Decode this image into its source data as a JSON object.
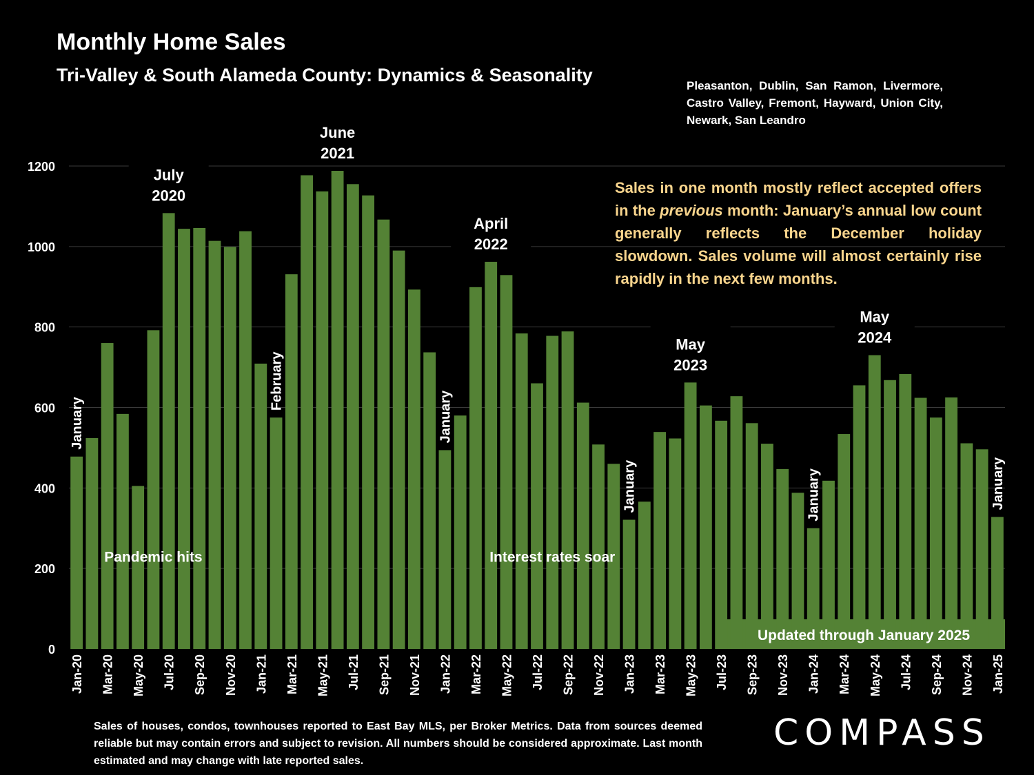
{
  "title": "Monthly Home Sales",
  "subtitle": "Tri-Valley & South Alameda County: Dynamics & Seasonality",
  "cities": "Pleasanton, Dublin, San Ramon, Livermore, Castro Valley, Fremont, Hayward, Union City, Newark, San Leandro",
  "note": {
    "before": "Sales in one month mostly reflect accepted offers in the ",
    "emphasis": "previous",
    "after": " month:  January’s annual low count generally reflects the December holiday slowdown. Sales volume will almost certainly rise rapidly in the next few months."
  },
  "footnote": "Sales of houses, condos, townhouses reported to East Bay MLS, per Broker Metrics. Data from sources deemed reliable but may contain errors and subject to revision. All numbers should be considered approximate.  Last month estimated and may change with late reported sales.",
  "logo": "COMPASS",
  "colors": {
    "bar": "#548235",
    "note": "#f9d58d",
    "background": "#000000"
  },
  "chart_data": {
    "type": "bar",
    "categories": [
      "Jan-20",
      "Feb-20",
      "Mar-20",
      "Apr-20",
      "May-20",
      "Jun-20",
      "Jul-20",
      "Aug-20",
      "Sep-20",
      "Oct-20",
      "Nov-20",
      "Dec-20",
      "Jan-21",
      "Feb-21",
      "Mar-21",
      "Apr-21",
      "May-21",
      "Jun-21",
      "Jul-21",
      "Aug-21",
      "Sep-21",
      "Oct-21",
      "Nov-21",
      "Dec-21",
      "Jan-22",
      "Feb-22",
      "Mar-22",
      "Apr-22",
      "May-22",
      "Jun-22",
      "Jul-22",
      "Aug-22",
      "Sep-22",
      "Oct-22",
      "Nov-22",
      "Dec-22",
      "Jan-23",
      "Feb-23",
      "Mar-23",
      "Apr-23",
      "May-23",
      "Jun-23",
      "Jul-23",
      "Aug-23",
      "Sep-23",
      "Oct-23",
      "Nov-23",
      "Dec-23",
      "Jan-24",
      "Feb-24",
      "Mar-24",
      "Apr-24",
      "May-24",
      "Jun-24",
      "Jul-24",
      "Aug-24",
      "Sep-24",
      "Oct-24",
      "Nov-24",
      "Dec-24",
      "Jan-25"
    ],
    "tick_labels": [
      "Jan-20",
      "Mar-20",
      "May-20",
      "Jul-20",
      "Sep-20",
      "Nov-20",
      "Jan-21",
      "Mar-21",
      "May-21",
      "Jul-21",
      "Sep-21",
      "Nov-21",
      "Jan-22",
      "Mar-22",
      "May-22",
      "Jul-22",
      "Sep-22",
      "Nov-22",
      "Jan-23",
      "Mar-23",
      "May-23",
      "Jul-23",
      "Sep-23",
      "Nov-23",
      "Jan-24",
      "Mar-24",
      "May-24",
      "Jul-24",
      "Sep-24",
      "Nov-24",
      "Jan-25"
    ],
    "values": [
      478,
      524,
      760,
      584,
      405,
      792,
      1083,
      1044,
      1046,
      1014,
      999,
      1038,
      709,
      575,
      931,
      1177,
      1137,
      1188,
      1155,
      1127,
      1067,
      990,
      893,
      737,
      494,
      580,
      899,
      962,
      929,
      784,
      660,
      778,
      789,
      612,
      508,
      460,
      321,
      366,
      539,
      523,
      662,
      605,
      567,
      628,
      561,
      510,
      447,
      388,
      300,
      418,
      534,
      655,
      730,
      668,
      683,
      624,
      575,
      625,
      511,
      496,
      328
    ],
    "ylim": [
      0,
      1200
    ],
    "yticks": [
      0,
      200,
      400,
      600,
      800,
      1000,
      1200
    ],
    "grid": true,
    "annotations": [
      {
        "text": "January",
        "index": 0,
        "rotate": true
      },
      {
        "text": "February",
        "index": 13,
        "rotate": true
      },
      {
        "text": "January",
        "index": 24,
        "rotate": true
      },
      {
        "text": "January",
        "index": 36,
        "rotate": true
      },
      {
        "text": "January",
        "index": 48,
        "rotate": true
      },
      {
        "text": "January",
        "index": 60,
        "rotate": true
      },
      {
        "text": "July",
        "text2": "2020",
        "index": 6
      },
      {
        "text": "June",
        "text2": "2021",
        "index": 17
      },
      {
        "text": "April",
        "text2": "2022",
        "index": 27
      },
      {
        "text": "May",
        "text2": "2023",
        "index": 40
      },
      {
        "text": "May",
        "text2": "2024",
        "index": 52
      },
      {
        "text": "Pandemic hits",
        "index": 5,
        "y": 230
      },
      {
        "text": "Interest rates soar",
        "index": 31,
        "y": 230
      }
    ],
    "banner": "Updated through January 2025"
  }
}
